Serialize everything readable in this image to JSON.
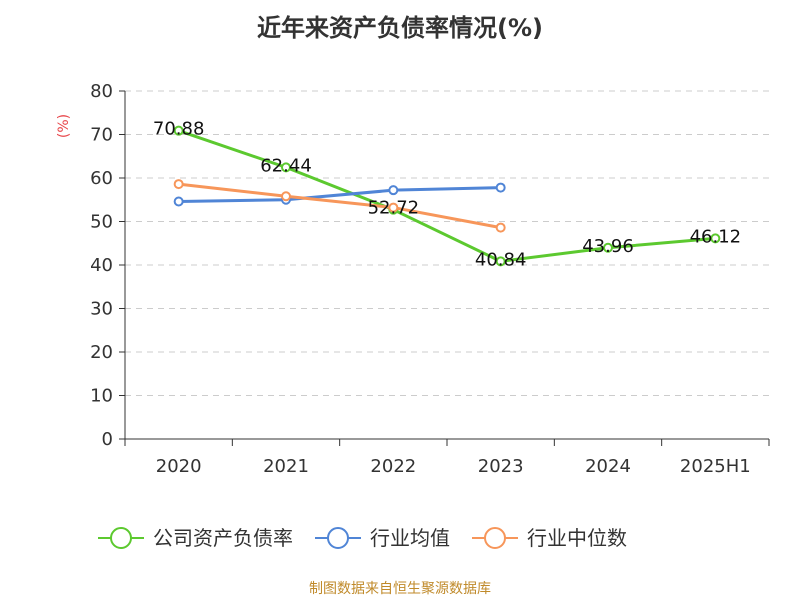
{
  "title": "近年来资产负债率情况(%)",
  "source": "制图数据来自恒生聚源数据库",
  "colors": {
    "grid": "#cccccc",
    "axis": "#333333",
    "ylabel": "#e8474b"
  },
  "chart_data": {
    "type": "line",
    "title": "近年来资产负债率情况(%)",
    "ylabel": "(%)",
    "xlabel": "",
    "categories": [
      "2020",
      "2021",
      "2022",
      "2023",
      "2024",
      "2025H1"
    ],
    "ylim": [
      0,
      80
    ],
    "yticks": [
      "0",
      "10",
      "20",
      "30",
      "40",
      "50",
      "60",
      "70",
      "80"
    ],
    "grid": true,
    "legend_position": "bottom",
    "series": [
      {
        "name": "公司资产负债率",
        "color": "#5cc92f",
        "values": [
          70.88,
          62.44,
          52.72,
          40.84,
          43.96,
          46.12
        ],
        "labels": [
          "70.88",
          "62.44",
          "52.72",
          "40.84",
          "43.96",
          "46.12"
        ]
      },
      {
        "name": "行业均值",
        "color": "#5085d6",
        "values": [
          54.6,
          55.0,
          57.2,
          57.8,
          null,
          null
        ]
      },
      {
        "name": "行业中位数",
        "color": "#f7965a",
        "values": [
          58.6,
          55.8,
          53.2,
          48.6,
          null,
          null
        ]
      }
    ]
  }
}
